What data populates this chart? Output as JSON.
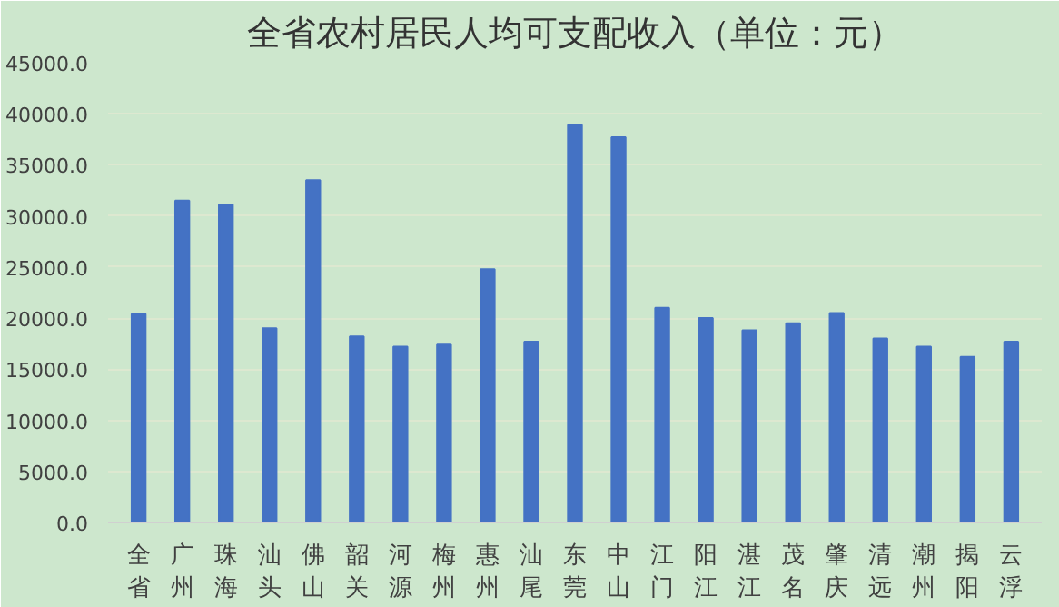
{
  "chart_data": {
    "type": "bar",
    "title": "全省农村居民人均可支配收入（单位：元）",
    "categories": [
      "全省",
      "广州",
      "珠海",
      "汕头",
      "佛山",
      "韶关",
      "河源",
      "梅州",
      "惠州",
      "汕尾",
      "东莞",
      "中山",
      "江门",
      "阳江",
      "湛江",
      "茂名",
      "肇庆",
      "清远",
      "潮州",
      "揭阳",
      "云浮"
    ],
    "values": [
      20400,
      31500,
      31100,
      19000,
      33500,
      18200,
      17200,
      17400,
      24800,
      17700,
      38900,
      37700,
      21000,
      20000,
      18800,
      19500,
      20500,
      18000,
      17200,
      16200,
      17700
    ],
    "color": "#4472c4",
    "ylim": [
      0,
      45000
    ],
    "yticks": [
      {
        "value": 0,
        "label": "0.0"
      },
      {
        "value": 5000,
        "label": "5000.0"
      },
      {
        "value": 10000,
        "label": "10000.0"
      },
      {
        "value": 15000,
        "label": "15000.0"
      },
      {
        "value": 20000,
        "label": "20000.0"
      },
      {
        "value": 25000,
        "label": "25000.0"
      },
      {
        "value": 30000,
        "label": "30000.0"
      },
      {
        "value": 35000,
        "label": "35000.0"
      },
      {
        "value": 40000,
        "label": "40000.0"
      },
      {
        "value": 45000,
        "label": "45000.0"
      }
    ],
    "grid": "y"
  }
}
